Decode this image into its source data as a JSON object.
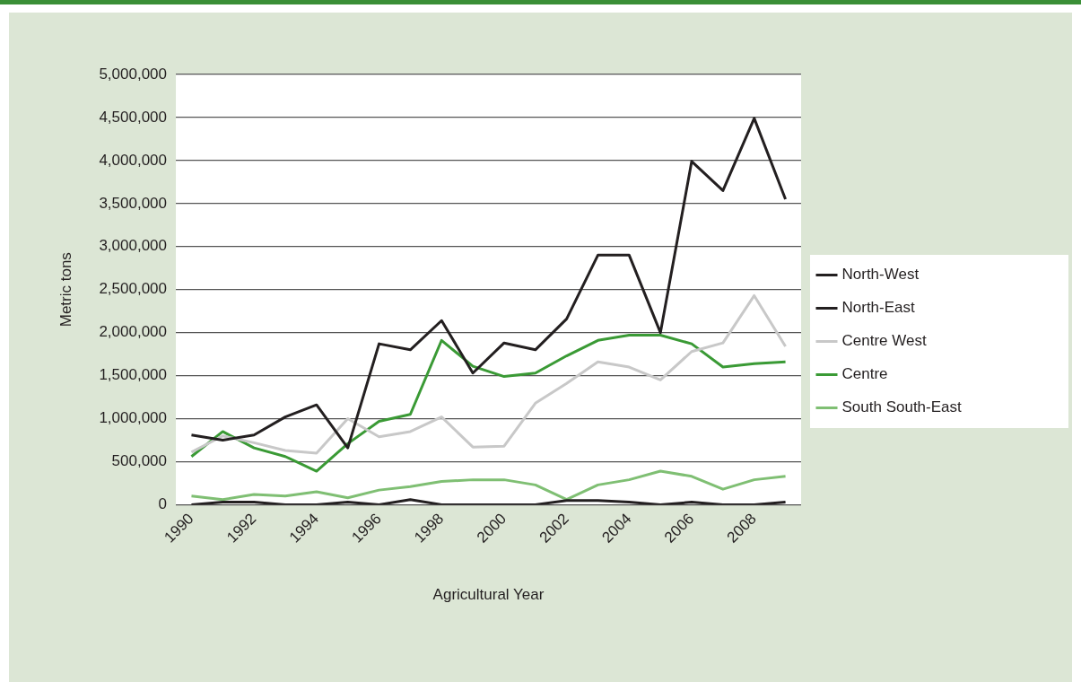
{
  "chart_data": {
    "type": "line",
    "xlabel": "Agricultural Year",
    "ylabel": "Metric tons",
    "categories": [
      "1990",
      null,
      "1992",
      null,
      "1994",
      null,
      "1996",
      null,
      "1998",
      null,
      "2000",
      null,
      "2002",
      null,
      "2004",
      null,
      "2006",
      null,
      "2008",
      null
    ],
    "series": [
      {
        "name": "North-West",
        "color": "#231f20",
        "values": [
          810000,
          750000,
          810000,
          1020000,
          1160000,
          660000,
          1870000,
          1800000,
          2140000,
          1530000,
          1880000,
          1800000,
          2160000,
          2900000,
          2900000,
          2000000,
          3990000,
          3650000,
          4490000,
          3550000
        ]
      },
      {
        "name": "North-East",
        "color": "#231f20",
        "values": [
          0,
          30000,
          30000,
          0,
          0,
          30000,
          0,
          60000,
          0,
          0,
          0,
          0,
          50000,
          50000,
          30000,
          0,
          30000,
          0,
          0,
          30000
        ]
      },
      {
        "name": "Centre West",
        "color": "#c8c8c8",
        "values": [
          610000,
          800000,
          720000,
          630000,
          600000,
          1000000,
          790000,
          850000,
          1020000,
          670000,
          680000,
          1180000,
          1410000,
          1660000,
          1600000,
          1450000,
          1780000,
          1880000,
          2430000,
          1840000
        ]
      },
      {
        "name": "Centre",
        "color": "#3a9a35",
        "values": [
          560000,
          850000,
          660000,
          560000,
          390000,
          710000,
          970000,
          1050000,
          1910000,
          1610000,
          1490000,
          1530000,
          1730000,
          1910000,
          1970000,
          1970000,
          1870000,
          1600000,
          1640000,
          1660000
        ]
      },
      {
        "name": "South South-East",
        "color": "#7fbf73",
        "values": [
          100000,
          60000,
          120000,
          100000,
          150000,
          80000,
          170000,
          210000,
          270000,
          290000,
          290000,
          230000,
          60000,
          230000,
          290000,
          390000,
          330000,
          180000,
          290000,
          330000
        ]
      }
    ],
    "ylim": [
      0,
      5000000
    ],
    "yticks": [
      0,
      {
        "value": 500000,
        "label": "500,000"
      },
      {
        "value": 1000000,
        "label": "1,000,000"
      },
      {
        "value": 1500000,
        "label": "1,500,000"
      },
      {
        "value": 2000000,
        "label": "2,000,000"
      },
      {
        "value": 2500000,
        "label": "2,500,000"
      },
      {
        "value": 3000000,
        "label": "3,000,000"
      },
      {
        "value": 3500000,
        "label": "3,500,000"
      },
      {
        "value": 4000000,
        "label": "4,000,000"
      },
      {
        "value": 4500000,
        "label": "4,500,000"
      },
      {
        "value": 5000000,
        "label": "5,000,000"
      }
    ],
    "grid": "y",
    "legend": "right",
    "marker": "none",
    "line_style": "solid"
  }
}
